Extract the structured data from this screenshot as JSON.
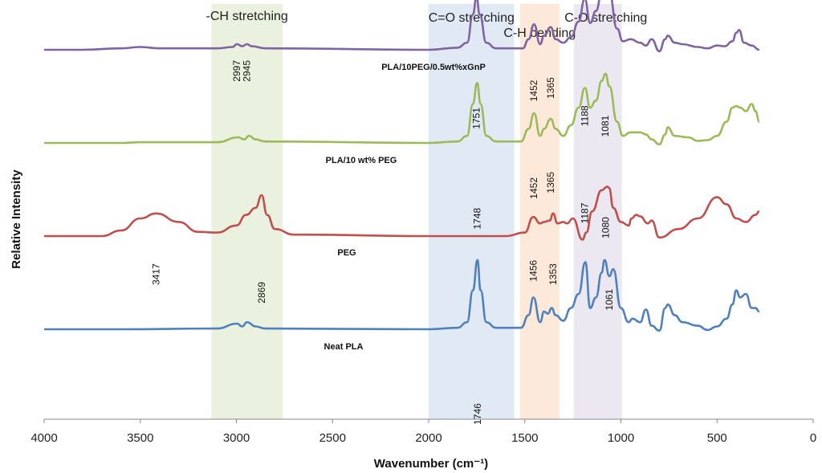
{
  "chart_data": {
    "type": "line",
    "title": "",
    "xlabel": "Wavenumber (cm⁻¹)",
    "ylabel": "Relative Intensity",
    "xlim": [
      4000,
      0
    ],
    "x_reversed": true,
    "x_ticks": [
      4000,
      3500,
      3000,
      2500,
      2000,
      1500,
      1000,
      500,
      0
    ],
    "grid": false,
    "legend": "inline labels",
    "regions": [
      {
        "label": "-CH stretching",
        "x_range": [
          3130,
          2760
        ],
        "color": "#e6eed8"
      },
      {
        "label": "C=O stretching",
        "x_range": [
          2000,
          1555
        ],
        "color": "#dce6f2"
      },
      {
        "label": "C-H bending",
        "x_range": [
          1525,
          1320
        ],
        "color": "#fde5d4"
      },
      {
        "label": "C-O stretching",
        "x_range": [
          1245,
          995
        ],
        "color": "#e8e4ef"
      }
    ],
    "series": [
      {
        "name": "PLA/10PEG/0.5wt%xGnP",
        "color": "#8064a2",
        "baseline": 0.9,
        "points": [
          [
            4000,
            0
          ],
          [
            3800,
            0
          ],
          [
            3600,
            -0.02
          ],
          [
            3500,
            -0.04
          ],
          [
            3400,
            -0.02
          ],
          [
            3100,
            -0.02
          ],
          [
            3020,
            -0.04
          ],
          [
            2997,
            -0.08
          ],
          [
            2970,
            -0.05
          ],
          [
            2945,
            -0.08
          ],
          [
            2920,
            -0.05
          ],
          [
            2850,
            -0.02
          ],
          [
            2000,
            0
          ],
          [
            1850,
            -0.03
          ],
          [
            1800,
            -0.1
          ],
          [
            1770,
            -0.5
          ],
          [
            1751,
            -0.75
          ],
          [
            1735,
            -0.5
          ],
          [
            1700,
            -0.1
          ],
          [
            1650,
            -0.02
          ],
          [
            1510,
            -0.02
          ],
          [
            1480,
            -0.15
          ],
          [
            1452,
            -0.36
          ],
          [
            1420,
            -0.08
          ],
          [
            1400,
            -0.2
          ],
          [
            1365,
            -0.32
          ],
          [
            1340,
            -0.15
          ],
          [
            1300,
            -0.1
          ],
          [
            1260,
            -0.18
          ],
          [
            1220,
            -0.4
          ],
          [
            1188,
            -0.72
          ],
          [
            1160,
            -0.38
          ],
          [
            1130,
            -0.55
          ],
          [
            1100,
            -0.8
          ],
          [
            1081,
            -0.86
          ],
          [
            1060,
            -0.8
          ],
          [
            1020,
            -0.3
          ],
          [
            990,
            -0.12
          ],
          [
            950,
            -0.15
          ],
          [
            900,
            -0.1
          ],
          [
            870,
            -0.06
          ],
          [
            840,
            -0.15
          ],
          [
            800,
            0.02
          ],
          [
            770,
            -0.15
          ],
          [
            756,
            -0.2
          ],
          [
            720,
            -0.1
          ],
          [
            680,
            -0.08
          ],
          [
            600,
            -0.04
          ],
          [
            550,
            -0.02
          ],
          [
            500,
            -0.06
          ],
          [
            460,
            -0.05
          ],
          [
            420,
            -0.12
          ],
          [
            400,
            -0.24
          ],
          [
            385,
            -0.28
          ],
          [
            360,
            -0.1
          ],
          [
            320,
            -0.06
          ],
          [
            280,
            0
          ]
        ]
      },
      {
        "name": "PLA/10 wt% PEG",
        "color": "#9bbb59",
        "baseline": 1.5,
        "points": [
          [
            4000,
            0
          ],
          [
            3800,
            0
          ],
          [
            3600,
            0
          ],
          [
            3500,
            -0.01
          ],
          [
            3100,
            -0.01
          ],
          [
            2990,
            -0.08
          ],
          [
            2960,
            -0.05
          ],
          [
            2935,
            -0.1
          ],
          [
            2900,
            -0.05
          ],
          [
            2850,
            -0.02
          ],
          [
            2000,
            0
          ],
          [
            1850,
            -0.02
          ],
          [
            1800,
            -0.1
          ],
          [
            1770,
            -0.55
          ],
          [
            1748,
            -0.85
          ],
          [
            1730,
            -0.55
          ],
          [
            1700,
            -0.1
          ],
          [
            1650,
            -0.02
          ],
          [
            1520,
            -0.02
          ],
          [
            1480,
            -0.2
          ],
          [
            1452,
            -0.42
          ],
          [
            1420,
            -0.1
          ],
          [
            1400,
            -0.2
          ],
          [
            1365,
            -0.34
          ],
          [
            1340,
            -0.2
          ],
          [
            1300,
            -0.1
          ],
          [
            1260,
            -0.25
          ],
          [
            1220,
            -0.5
          ],
          [
            1187,
            -0.78
          ],
          [
            1160,
            -0.5
          ],
          [
            1130,
            -0.6
          ],
          [
            1100,
            -0.88
          ],
          [
            1080,
            -0.98
          ],
          [
            1060,
            -0.8
          ],
          [
            1020,
            -0.3
          ],
          [
            990,
            -0.1
          ],
          [
            950,
            -0.15
          ],
          [
            900,
            -0.15
          ],
          [
            870,
            -0.12
          ],
          [
            840,
            -0.05
          ],
          [
            800,
            0.02
          ],
          [
            770,
            -0.12
          ],
          [
            756,
            -0.22
          ],
          [
            720,
            -0.1
          ],
          [
            650,
            -0.08
          ],
          [
            600,
            -0.03
          ],
          [
            550,
            -0.04
          ],
          [
            500,
            -0.1
          ],
          [
            450,
            -0.3
          ],
          [
            420,
            -0.5
          ],
          [
            400,
            -0.52
          ],
          [
            380,
            -0.5
          ],
          [
            350,
            -0.45
          ],
          [
            320,
            -0.55
          ],
          [
            300,
            -0.45
          ],
          [
            280,
            -0.3
          ]
        ]
      },
      {
        "name": "PEG",
        "color": "#c0504d",
        "baseline": 2.1,
        "points": [
          [
            4000,
            0
          ],
          [
            3700,
            0
          ],
          [
            3600,
            -0.08
          ],
          [
            3500,
            -0.25
          ],
          [
            3417,
            -0.32
          ],
          [
            3300,
            -0.2
          ],
          [
            3200,
            -0.06
          ],
          [
            3100,
            -0.05
          ],
          [
            3000,
            -0.15
          ],
          [
            2950,
            -0.3
          ],
          [
            2900,
            -0.4
          ],
          [
            2869,
            -0.58
          ],
          [
            2840,
            -0.3
          ],
          [
            2800,
            -0.1
          ],
          [
            2700,
            -0.02
          ],
          [
            2000,
            0
          ],
          [
            1600,
            0
          ],
          [
            1500,
            -0.05
          ],
          [
            1456,
            -0.27
          ],
          [
            1420,
            -0.18
          ],
          [
            1400,
            -0.2
          ],
          [
            1370,
            -0.22
          ],
          [
            1353,
            -0.32
          ],
          [
            1330,
            -0.18
          ],
          [
            1300,
            -0.2
          ],
          [
            1280,
            -0.18
          ],
          [
            1250,
            -0.25
          ],
          [
            1200,
            0.05
          ],
          [
            1180,
            -0.05
          ],
          [
            1150,
            -0.35
          ],
          [
            1100,
            -0.65
          ],
          [
            1070,
            -0.7
          ],
          [
            1061,
            -0.68
          ],
          [
            1040,
            -0.4
          ],
          [
            1000,
            -0.2
          ],
          [
            960,
            -0.15
          ],
          [
            945,
            -0.25
          ],
          [
            920,
            -0.3
          ],
          [
            900,
            -0.28
          ],
          [
            860,
            -0.18
          ],
          [
            840,
            -0.22
          ],
          [
            800,
            0.02
          ],
          [
            700,
            -0.1
          ],
          [
            600,
            -0.25
          ],
          [
            500,
            -0.55
          ],
          [
            450,
            -0.45
          ],
          [
            400,
            -0.25
          ],
          [
            350,
            -0.2
          ],
          [
            300,
            -0.3
          ],
          [
            280,
            -0.35
          ]
        ]
      },
      {
        "name": "Neat PLA",
        "color": "#4f81bd",
        "baseline": 2.7,
        "points": [
          [
            4000,
            0
          ],
          [
            3800,
            0
          ],
          [
            3600,
            0
          ],
          [
            3100,
            -0.01
          ],
          [
            2997,
            -0.08
          ],
          [
            2970,
            -0.04
          ],
          [
            2945,
            -0.1
          ],
          [
            2900,
            -0.04
          ],
          [
            2850,
            -0.01
          ],
          [
            2000,
            0
          ],
          [
            1850,
            -0.02
          ],
          [
            1800,
            -0.1
          ],
          [
            1770,
            -0.55
          ],
          [
            1746,
            -0.98
          ],
          [
            1730,
            -0.55
          ],
          [
            1700,
            -0.1
          ],
          [
            1650,
            -0.02
          ],
          [
            1520,
            -0.02
          ],
          [
            1480,
            -0.2
          ],
          [
            1455,
            -0.45
          ],
          [
            1420,
            -0.1
          ],
          [
            1400,
            -0.25
          ],
          [
            1380,
            -0.22
          ],
          [
            1360,
            -0.3
          ],
          [
            1340,
            -0.2
          ],
          [
            1300,
            -0.12
          ],
          [
            1260,
            -0.3
          ],
          [
            1220,
            -0.5
          ],
          [
            1185,
            -0.95
          ],
          [
            1160,
            -0.3
          ],
          [
            1130,
            -0.45
          ],
          [
            1100,
            -0.8
          ],
          [
            1085,
            -0.98
          ],
          [
            1060,
            -0.75
          ],
          [
            1040,
            -0.85
          ],
          [
            1000,
            -0.3
          ],
          [
            960,
            -0.1
          ],
          [
            940,
            -0.15
          ],
          [
            900,
            -0.1
          ],
          [
            870,
            -0.28
          ],
          [
            840,
            -0.05
          ],
          [
            800,
            0.02
          ],
          [
            770,
            -0.3
          ],
          [
            756,
            -0.35
          ],
          [
            720,
            -0.2
          ],
          [
            680,
            -0.1
          ],
          [
            600,
            -0.05
          ],
          [
            550,
            0.01
          ],
          [
            500,
            -0.04
          ],
          [
            450,
            -0.15
          ],
          [
            420,
            -0.35
          ],
          [
            400,
            -0.55
          ],
          [
            380,
            -0.45
          ],
          [
            350,
            -0.5
          ],
          [
            320,
            -0.3
          ],
          [
            300,
            -0.3
          ],
          [
            280,
            -0.25
          ]
        ]
      }
    ],
    "annotations": [
      {
        "text": "2997",
        "x": 2997,
        "series": 0
      },
      {
        "text": "2945",
        "x": 2945,
        "series": 0
      },
      {
        "text": "1751",
        "x": 1751,
        "series": 0
      },
      {
        "text": "1452",
        "x": 1452,
        "series": 0
      },
      {
        "text": "1365",
        "x": 1365,
        "series": 0
      },
      {
        "text": "1188",
        "x": 1188,
        "series": 0
      },
      {
        "text": "1081",
        "x": 1081,
        "series": 0
      },
      {
        "text": "1748",
        "x": 1748,
        "series": 1
      },
      {
        "text": "1452",
        "x": 1452,
        "series": 1
      },
      {
        "text": "1365",
        "x": 1365,
        "series": 1
      },
      {
        "text": "1187",
        "x": 1187,
        "series": 1
      },
      {
        "text": "1080",
        "x": 1080,
        "series": 1
      },
      {
        "text": "3417",
        "x": 3417,
        "series": 2
      },
      {
        "text": "2869",
        "x": 2869,
        "series": 2
      },
      {
        "text": "1456",
        "x": 1456,
        "series": 2
      },
      {
        "text": "1353",
        "x": 1353,
        "series": 2
      },
      {
        "text": "1061",
        "x": 1061,
        "series": 2
      },
      {
        "text": "1746",
        "x": 1746,
        "series": 3
      }
    ]
  }
}
